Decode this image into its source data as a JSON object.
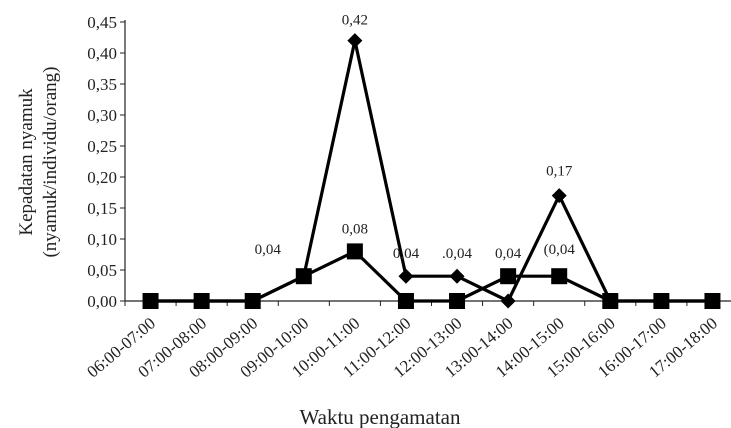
{
  "chart_data": {
    "type": "line",
    "title": "",
    "xlabel": "Waktu pengamatan",
    "ylabel_line1": "Kepadatan nyamuk",
    "ylabel_line2": "(nyamuk/individu/orang)",
    "ylim": [
      0,
      0.45
    ],
    "yticks": [
      "0,00",
      "0,05",
      "0,10",
      "0,15",
      "0,20",
      "0,25",
      "0,30",
      "0,35",
      "0,40",
      "0,45"
    ],
    "grid": false,
    "legend": "none",
    "categories": [
      "06:00-07:00",
      "07:00-08:00",
      "08:00-09:00",
      "09:00-10:00",
      "10:00-11:00",
      "11:00-12:00",
      "12:00-13:00",
      "13:00-14:00",
      "14:00-15:00",
      "15:00-16:00",
      "16:00-17:00",
      "17:00-18:00"
    ],
    "series": [
      {
        "marker": "diamond",
        "color": "#000000",
        "values": [
          0,
          0,
          0,
          0.04,
          0.42,
          0.04,
          0.04,
          0,
          0.17,
          0,
          0,
          0
        ]
      },
      {
        "marker": "square",
        "color": "#000000",
        "values": [
          0,
          0,
          0,
          0.04,
          0.08,
          0,
          0,
          0.04,
          0.04,
          0,
          0,
          0
        ]
      }
    ],
    "data_labels": [
      {
        "text": "0,42",
        "category": 4,
        "value": 0.42
      },
      {
        "text": "0,08",
        "category": 4,
        "value": 0.08
      },
      {
        "text": "0,04",
        "category": 3,
        "value": 0.04
      },
      {
        "text": "0,04",
        "category": 5,
        "value": 0.04
      },
      {
        "text": ".0,04",
        "category": 6,
        "value": 0.04
      },
      {
        "text": "0,04",
        "category": 7,
        "value": 0.04
      },
      {
        "text": "(0,04",
        "category": 8,
        "value": 0.04
      },
      {
        "text": "0,17",
        "category": 8,
        "value": 0.17
      }
    ]
  }
}
